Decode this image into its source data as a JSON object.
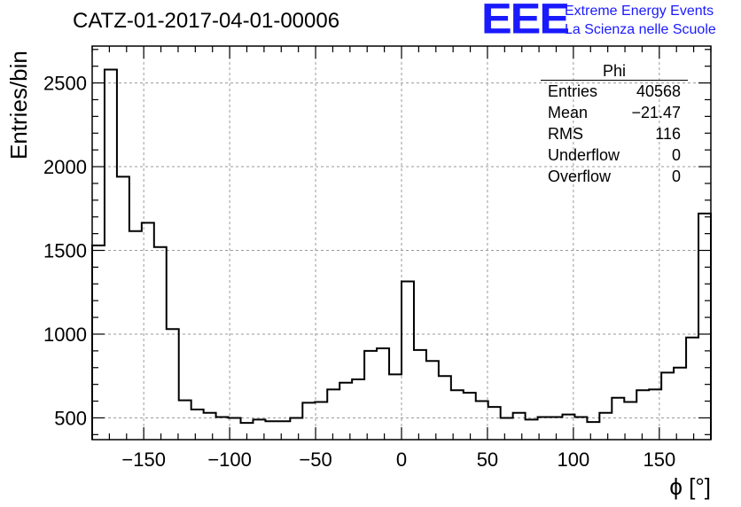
{
  "header": {
    "title": "CATZ-01-2017-04-01-00006",
    "logo_mark": "EEE",
    "logo_line1": "Extreme Energy Events",
    "logo_line2": "La Scienza nelle Scuole",
    "logo_color": "#1a1aff"
  },
  "stats_box": {
    "name": "Phi",
    "rows": [
      {
        "label": "Entries",
        "value": "40568"
      },
      {
        "label": "Mean",
        "value": "−21.47"
      },
      {
        "label": "RMS",
        "value": "116"
      },
      {
        "label": "Underflow",
        "value": "0"
      },
      {
        "label": "Overflow",
        "value": "0"
      }
    ]
  },
  "chart_data": {
    "type": "histogram",
    "xlabel": "ϕ [°]",
    "ylabel": "Entries/bin",
    "xlim": [
      -180,
      180
    ],
    "ylim": [
      370,
      2720
    ],
    "bin_width": 7.2,
    "grid": true,
    "x_ticks": [
      -150,
      -100,
      -50,
      0,
      50,
      100,
      150
    ],
    "x_tick_labels": [
      "−150",
      "−100",
      "−50",
      "0",
      "50",
      "100",
      "150"
    ],
    "y_ticks": [
      500,
      1000,
      1500,
      2000,
      2500
    ],
    "y_tick_labels": [
      "500",
      "1000",
      "1500",
      "2000",
      "2500"
    ],
    "values": [
      1530,
      2580,
      1940,
      1615,
      1665,
      1520,
      1030,
      605,
      550,
      530,
      505,
      500,
      470,
      490,
      480,
      480,
      500,
      590,
      595,
      670,
      710,
      730,
      900,
      915,
      760,
      1315,
      905,
      840,
      750,
      665,
      650,
      600,
      565,
      500,
      530,
      490,
      505,
      505,
      520,
      505,
      475,
      530,
      620,
      595,
      665,
      670,
      770,
      800,
      980,
      1720
    ]
  }
}
